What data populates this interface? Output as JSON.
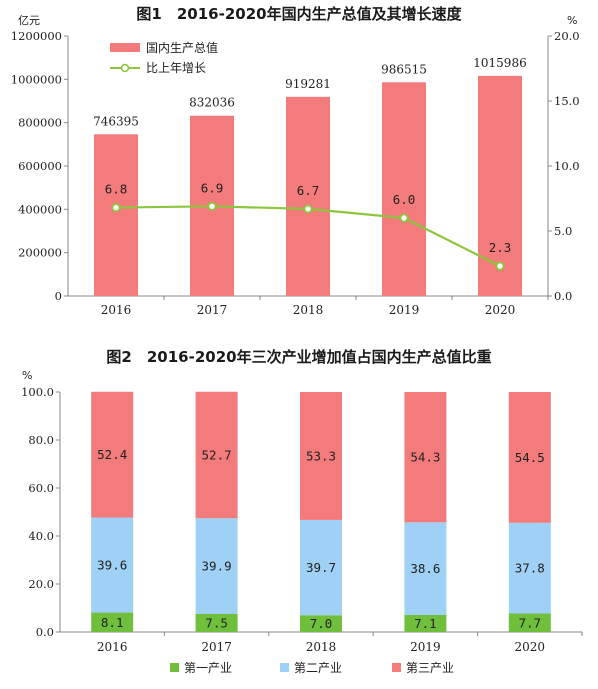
{
  "colors": {
    "bar": "#f47b7b",
    "line": "#8cc63e",
    "primary": "#6fbf3c",
    "secondary": "#9fd0f5",
    "tertiary": "#f47b7b",
    "axis": "#8a8a8a"
  },
  "chart_data": [
    {
      "type": "bar",
      "title": "图1　2016-2020年国内生产总值及其增长速度",
      "y_unit_left": "亿元",
      "y_unit_right": "%",
      "categories": [
        "2016",
        "2017",
        "2018",
        "2019",
        "2020"
      ],
      "y_ticks_left": [
        "0",
        "200000",
        "400000",
        "600000",
        "800000",
        "1000000",
        "1200000"
      ],
      "y_ticks_right": [
        "0.0",
        "5.0",
        "10.0",
        "15.0",
        "20.0"
      ],
      "ylim_left": [
        0,
        1200000
      ],
      "ylim_right": [
        0,
        20
      ],
      "legend_position": "top-left",
      "series": [
        {
          "name": "国内生产总值",
          "type": "bar",
          "axis": "left",
          "values": [
            746395,
            832036,
            919281,
            986515,
            1015986
          ],
          "labels": [
            "746395",
            "832036",
            "919281",
            "986515",
            "1015986"
          ]
        },
        {
          "name": "比上年增长",
          "type": "line",
          "axis": "right",
          "values": [
            6.8,
            6.9,
            6.7,
            6.0,
            2.3
          ],
          "labels": [
            "6.8",
            "6.9",
            "6.7",
            "6.0",
            "2.3"
          ]
        }
      ]
    },
    {
      "type": "bar",
      "stacked": true,
      "title": "图2　2016-2020年三次产业增加值占国内生产总值比重",
      "y_unit": "%",
      "categories": [
        "2016",
        "2017",
        "2018",
        "2019",
        "2020"
      ],
      "y_ticks": [
        "0.0",
        "20.0",
        "40.0",
        "60.0",
        "80.0",
        "100.0"
      ],
      "ylim": [
        0,
        100
      ],
      "legend_position": "bottom",
      "series": [
        {
          "name": "第一产业",
          "values": [
            8.1,
            7.5,
            7.0,
            7.1,
            7.7
          ],
          "labels": [
            "8.1",
            "7.5",
            "7.0",
            "7.1",
            "7.7"
          ]
        },
        {
          "name": "第二产业",
          "values": [
            39.6,
            39.9,
            39.7,
            38.6,
            37.8
          ],
          "labels": [
            "39.6",
            "39.9",
            "39.7",
            "38.6",
            "37.8"
          ]
        },
        {
          "name": "第三产业",
          "values": [
            52.4,
            52.7,
            53.3,
            54.3,
            54.5
          ],
          "labels": [
            "52.4",
            "52.7",
            "53.3",
            "54.3",
            "54.5"
          ]
        }
      ]
    }
  ]
}
